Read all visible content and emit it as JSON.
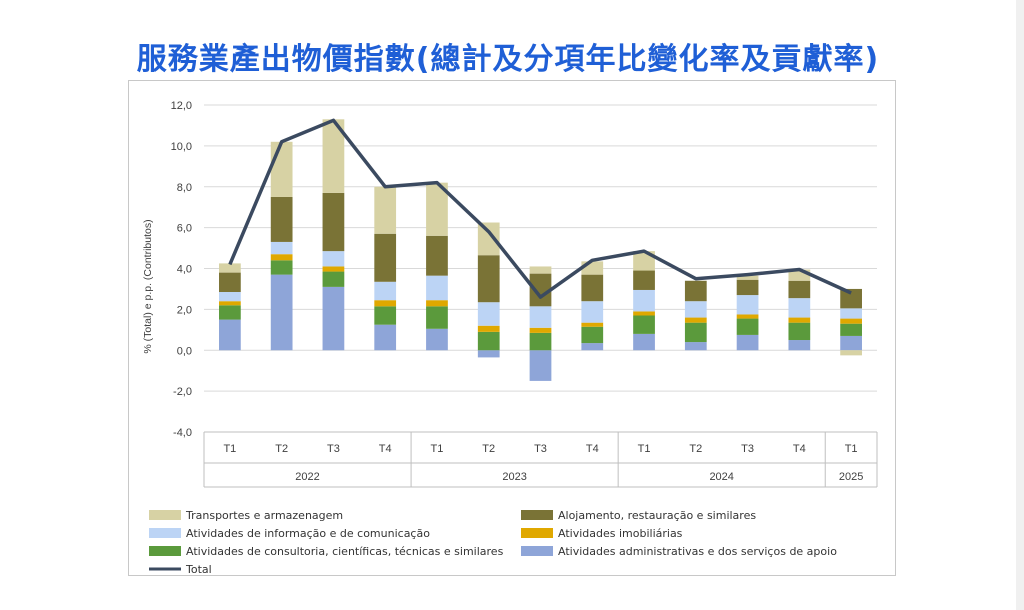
{
  "title": "服務業產出物價指數(總計及分項年比變化率及貢獻率)",
  "colors": {
    "title": "#1f5fd6"
  },
  "chart_data": {
    "type": "bar",
    "subtype": "stacked-bar-with-line",
    "ylabel": "% (Total) e p.p. (Contributos)",
    "ylim": [
      -4,
      12
    ],
    "yticks": [
      "-4,0",
      "-2,0",
      "0,0",
      "2,0",
      "4,0",
      "6,0",
      "8,0",
      "10,0",
      "12,0"
    ],
    "yticks_values": [
      -4,
      -2,
      0,
      2,
      4,
      6,
      8,
      10,
      12
    ],
    "grid": true,
    "legend_position": "bottom",
    "categories": [
      "T1",
      "T2",
      "T3",
      "T4",
      "T1",
      "T2",
      "T3",
      "T4",
      "T1",
      "T2",
      "T3",
      "T4",
      "T1"
    ],
    "years": [
      {
        "label": "2022",
        "count": 4
      },
      {
        "label": "2023",
        "count": 4
      },
      {
        "label": "2024",
        "count": 4
      },
      {
        "label": "2025",
        "count": 1
      }
    ],
    "series": [
      {
        "name": "Atividades administrativas e dos serviços de apoio",
        "color": "#8ea5d8",
        "values": [
          1.5,
          3.7,
          3.1,
          1.25,
          1.05,
          -0.35,
          -1.5,
          0.35,
          0.8,
          0.4,
          0.75,
          0.5,
          0.7
        ]
      },
      {
        "name": "Atividades de consultoria, científicas, técnicas e similares",
        "color": "#5b9a3c",
        "values": [
          0.7,
          0.7,
          0.75,
          0.9,
          1.1,
          0.9,
          0.85,
          0.8,
          0.9,
          0.95,
          0.8,
          0.85,
          0.6
        ]
      },
      {
        "name": "Atividades imobiliárias",
        "color": "#e0a800",
        "values": [
          0.2,
          0.3,
          0.25,
          0.3,
          0.3,
          0.3,
          0.25,
          0.2,
          0.2,
          0.25,
          0.2,
          0.25,
          0.25
        ]
      },
      {
        "name": "Atividades de informação e de comunicação",
        "color": "#bcd4f5",
        "values": [
          0.45,
          0.6,
          0.75,
          0.9,
          1.2,
          1.15,
          1.05,
          1.05,
          1.05,
          0.8,
          0.95,
          0.95,
          0.5
        ]
      },
      {
        "name": "Alojamento, restauração e similares",
        "color": "#7a7336",
        "values": [
          0.95,
          2.2,
          2.85,
          2.35,
          1.95,
          2.3,
          1.6,
          1.3,
          0.95,
          1.0,
          0.75,
          0.85,
          0.95
        ]
      },
      {
        "name": "Transportes e armazenagem",
        "color": "#d7d2a4",
        "values": [
          0.45,
          2.7,
          3.6,
          2.3,
          2.6,
          1.6,
          0.35,
          0.65,
          0.95,
          0.0,
          0.2,
          0.55,
          -0.25
        ]
      }
    ],
    "line": {
      "name": "Total",
      "color": "#3b4a60",
      "values": [
        4.2,
        10.2,
        11.25,
        8.0,
        8.2,
        5.8,
        2.6,
        4.4,
        4.85,
        3.5,
        3.7,
        3.95,
        2.8
      ]
    },
    "legend_order": [
      "Transportes e armazenagem",
      "Alojamento, restauração e similares",
      "Atividades de informação e de comunicação",
      "Atividades imobiliárias",
      "Atividades de consultoria, científicas, técnicas e similares",
      "Atividades administrativas e dos serviços de apoio",
      "Total"
    ]
  }
}
